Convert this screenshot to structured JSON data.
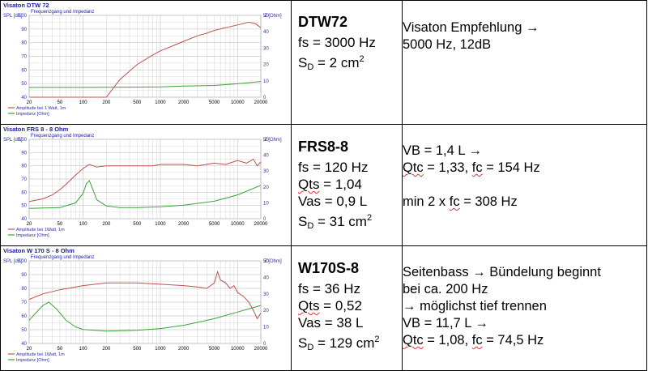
{
  "rows": [
    {
      "chart": {
        "title": "Visaton DTW 72",
        "subtitle": "Frequenzgang und Impedanz",
        "left_axis_label": "SPL [dB]",
        "right_axis_label": "Z [Ohm]",
        "left_ticks": [
          "100",
          "90",
          "80",
          "70",
          "60",
          "50",
          "40"
        ],
        "right_ticks": [
          "50",
          "40",
          "30",
          "20",
          "10",
          "0"
        ],
        "x_ticks": [
          "20",
          "50",
          "100",
          "200",
          "500",
          "1000",
          "2000",
          "5000",
          "10000",
          "20000"
        ],
        "legend": [
          "Amplitude bei 1 Watt, 1m",
          "Impedanz [Ohm]"
        ]
      },
      "name": "DTW72",
      "params": [
        {
          "main": "fs = 3000 Hz"
        },
        {
          "main": "S",
          "sub": "D",
          "rest": " = 2 cm",
          "sup": "2"
        }
      ],
      "rec": [
        "Visaton Empfehlung →",
        "5000 Hz, 12dB"
      ]
    },
    {
      "chart": {
        "title": "Visaton FRS 8 - 8 Ohm",
        "subtitle": "Frequenzgang und Impedanz",
        "left_axis_label": "SPL [dB]",
        "right_axis_label": "Z [Ohm]",
        "left_ticks": [
          "100",
          "90",
          "80",
          "70",
          "60",
          "50",
          "40"
        ],
        "right_ticks": [
          "50",
          "40",
          "30",
          "20",
          "10",
          "0"
        ],
        "x_ticks": [
          "20",
          "50",
          "100",
          "200",
          "500",
          "1000",
          "2000",
          "5000",
          "10000",
          "20000"
        ],
        "legend": [
          "Amplitude bei 1Watt, 1m",
          "Impedanz [Ohm]"
        ]
      },
      "name": "FRS8-8",
      "params": [
        {
          "main": "fs = 120 Hz"
        },
        {
          "main": "Qts = 1,04"
        },
        {
          "main": "Vas = 0,9 L"
        },
        {
          "main": "S",
          "sub": "D",
          "rest": " = 31 cm",
          "sup": "2"
        }
      ],
      "rec": [
        "VB = 1,4 L →",
        "Qtc = 1,33, fc = 154 Hz",
        "",
        "min 2 x fc = 308 Hz"
      ]
    },
    {
      "chart": {
        "title": "Visaton W 170 S - 8 Ohm",
        "subtitle": "Frequenzgang und Impedanz",
        "left_axis_label": "SPL [dB]",
        "right_axis_label": "Z [Ohm]",
        "left_ticks": [
          "100",
          "90",
          "80",
          "70",
          "60",
          "50",
          "40"
        ],
        "right_ticks": [
          "50",
          "40",
          "30",
          "20",
          "10",
          "0"
        ],
        "x_ticks": [
          "20",
          "50",
          "100",
          "200",
          "500",
          "1000",
          "2000",
          "5000",
          "10000",
          "20000"
        ],
        "legend": [
          "Amplitude bei 1Watt, 1m",
          "Impedanz [Ohm]"
        ]
      },
      "name": "W170S-8",
      "params": [
        {
          "main": "fs = 36 Hz"
        },
        {
          "main": "Qts = 0,52"
        },
        {
          "main": "Vas = 38 L"
        },
        {
          "main": "S",
          "sub": "D",
          "rest": " = 129 cm",
          "sup": "2"
        }
      ],
      "rec": [
        "Seitenbass → Bündelung beginnt",
        "bei ca. 200 Hz",
        " → möglichst tief trennen",
        "VB = 11,7 L →",
        "Qtc = 1,08, fc = 74,5 Hz"
      ]
    }
  ],
  "colors": {
    "spl": "#c0504d",
    "imp": "#3aa23a",
    "title": "#1a1aa6",
    "axis": "#2f2fa0",
    "grid": "#c8c8c8"
  },
  "chart_data": [
    {
      "type": "line",
      "title": "Visaton DTW 72",
      "subtitle": "Frequenzgang und Impedanz",
      "xlabel": "",
      "ylabel": "SPL [dB]",
      "y2label": "Z [Ohm]",
      "xscale": "log",
      "xlim": [
        20,
        20000
      ],
      "ylim": [
        40,
        100
      ],
      "y2lim": [
        0,
        50
      ],
      "grid": true,
      "legend": "bottom-left",
      "series": [
        {
          "name": "Amplitude bei 1 Watt, 1m",
          "axis": "left",
          "x": [
            20,
            100,
            200,
            300,
            500,
            800,
            1000,
            1500,
            2000,
            3000,
            4000,
            5000,
            7000,
            10000,
            14000,
            17000,
            20000
          ],
          "y": [
            40,
            40,
            40,
            53,
            64,
            71,
            74,
            78,
            81,
            85,
            87,
            89,
            91,
            93,
            95,
            94,
            91
          ]
        },
        {
          "name": "Impedanz [Ohm]",
          "axis": "right",
          "x": [
            20,
            100,
            500,
            1000,
            2000,
            5000,
            10000,
            20000
          ],
          "y": [
            6,
            6,
            6.2,
            6.3,
            6.8,
            7.2,
            8.2,
            9.6
          ]
        }
      ]
    },
    {
      "type": "line",
      "title": "Visaton FRS 8 - 8 Ohm",
      "subtitle": "Frequenzgang und Impedanz",
      "xlabel": "",
      "ylabel": "SPL [dB]",
      "y2label": "Z [Ohm]",
      "xscale": "log",
      "xlim": [
        20,
        20000
      ],
      "ylim": [
        40,
        100
      ],
      "y2lim": [
        0,
        50
      ],
      "grid": true,
      "legend": "bottom-left",
      "series": [
        {
          "name": "Amplitude bei 1Watt, 1m",
          "axis": "left",
          "x": [
            20,
            30,
            40,
            50,
            60,
            80,
            100,
            120,
            150,
            200,
            300,
            500,
            800,
            1000,
            2000,
            3000,
            5000,
            7000,
            10000,
            13000,
            16000,
            18000,
            20000
          ],
          "y": [
            53,
            55,
            58,
            62,
            66,
            73,
            78,
            81,
            79,
            80,
            80,
            80,
            80,
            81,
            81,
            80,
            82,
            81,
            84,
            82,
            85,
            80,
            83
          ]
        },
        {
          "name": "Impedanz [Ohm]",
          "axis": "right",
          "x": [
            20,
            50,
            80,
            100,
            110,
            120,
            130,
            150,
            200,
            300,
            500,
            1000,
            2000,
            5000,
            10000,
            20000
          ],
          "y": [
            6.5,
            7,
            10,
            16,
            22,
            24,
            20,
            12,
            8,
            7,
            7,
            7.5,
            8.5,
            11,
            15,
            21
          ]
        }
      ]
    },
    {
      "type": "line",
      "title": "Visaton W 170 S - 8 Ohm",
      "subtitle": "Frequenzgang und Impedanz",
      "xlabel": "",
      "ylabel": "SPL [dB]",
      "y2label": "Z [Ohm]",
      "xscale": "log",
      "xlim": [
        20,
        20000
      ],
      "ylim": [
        40,
        100
      ],
      "y2lim": [
        0,
        50
      ],
      "grid": true,
      "legend": "bottom-left",
      "series": [
        {
          "name": "Amplitude bei 1Watt, 1m",
          "axis": "left",
          "x": [
            20,
            30,
            50,
            100,
            200,
            500,
            1000,
            2000,
            3000,
            4000,
            5000,
            5500,
            6000,
            7000,
            8000,
            9000,
            10000,
            12000,
            14000,
            16000,
            18000,
            20000
          ],
          "y": [
            72,
            76,
            79,
            82,
            84,
            84,
            83,
            82,
            81,
            80,
            84,
            92,
            86,
            84,
            80,
            82,
            77,
            74,
            70,
            64,
            58,
            62
          ]
        },
        {
          "name": "Impedanz [Ohm]",
          "axis": "right",
          "x": [
            20,
            25,
            30,
            36,
            45,
            60,
            80,
            100,
            200,
            500,
            1000,
            2000,
            5000,
            10000,
            20000
          ],
          "y": [
            14,
            19,
            23,
            25,
            21,
            14,
            10,
            8.5,
            7.5,
            8,
            9,
            11,
            15,
            19,
            23
          ]
        }
      ]
    }
  ]
}
